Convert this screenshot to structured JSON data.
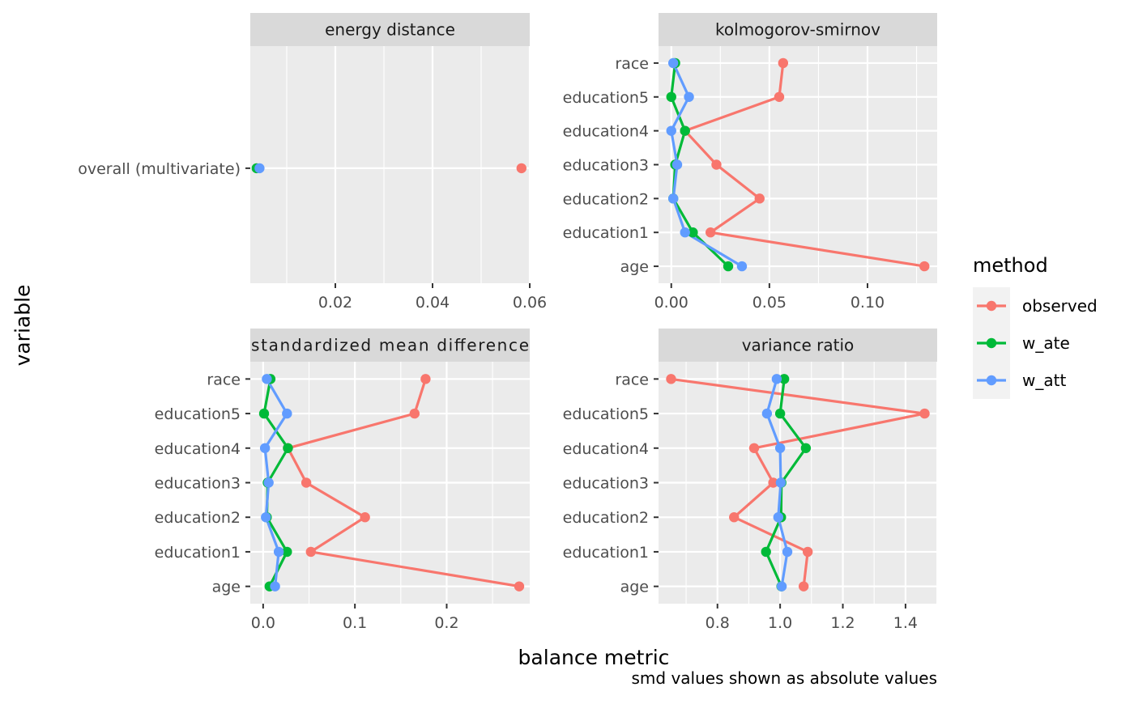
{
  "axis_labels": {
    "y": "variable",
    "x": "balance metric"
  },
  "caption": "smd values shown as absolute values",
  "legend": {
    "title": "method",
    "entries": [
      {
        "name": "observed",
        "color": "#F8766D"
      },
      {
        "name": "w_ate",
        "color": "#00BA38"
      },
      {
        "name": "w_att",
        "color": "#619CFF"
      }
    ]
  },
  "chart_data": [
    {
      "type": "line",
      "facet": "energy distance",
      "categories": [
        "overall (multivariate)"
      ],
      "xlim": [
        0.0025,
        0.06
      ],
      "xticks": [
        0.02,
        0.04,
        0.06
      ],
      "xtick_labels": [
        "0.02",
        "0.04",
        "0.06"
      ],
      "series": [
        {
          "name": "observed",
          "values": [
            0.0583
          ]
        },
        {
          "name": "w_ate",
          "values": [
            0.0038
          ]
        },
        {
          "name": "w_att",
          "values": [
            0.0044
          ]
        }
      ]
    },
    {
      "type": "line",
      "facet": "kolmogorov-smirnov",
      "categories": [
        "race",
        "education5",
        "education4",
        "education3",
        "education2",
        "education1",
        "age"
      ],
      "xlim": [
        -0.0065,
        0.1355
      ],
      "xticks": [
        0.0,
        0.05,
        0.1
      ],
      "xtick_labels": [
        "0.00",
        "0.05",
        "0.10"
      ],
      "series": [
        {
          "name": "observed",
          "values": [
            0.057,
            0.055,
            0.007,
            0.023,
            0.045,
            0.02,
            0.129
          ]
        },
        {
          "name": "w_ate",
          "values": [
            0.002,
            0.0,
            0.007,
            0.002,
            0.001,
            0.011,
            0.029
          ]
        },
        {
          "name": "w_att",
          "values": [
            0.001,
            0.009,
            0.0,
            0.003,
            0.001,
            0.007,
            0.036
          ]
        }
      ]
    },
    {
      "type": "line",
      "facet": "standardized mean difference",
      "categories": [
        "race",
        "education5",
        "education4",
        "education3",
        "education2",
        "education1",
        "age"
      ],
      "xlim": [
        -0.014,
        0.2905
      ],
      "xticks": [
        0.0,
        0.1,
        0.2
      ],
      "xtick_labels": [
        "0.0",
        "0.1",
        "0.2"
      ],
      "series": [
        {
          "name": "observed",
          "values": [
            0.177,
            0.165,
            0.027,
            0.047,
            0.111,
            0.052,
            0.279
          ]
        },
        {
          "name": "w_ate",
          "values": [
            0.008,
            0.001,
            0.027,
            0.005,
            0.004,
            0.026,
            0.007
          ]
        },
        {
          "name": "w_att",
          "values": [
            0.004,
            0.026,
            0.002,
            0.006,
            0.003,
            0.017,
            0.013
          ]
        }
      ]
    },
    {
      "type": "line",
      "facet": "variance ratio",
      "categories": [
        "race",
        "education5",
        "education4",
        "education3",
        "education2",
        "education1",
        "age"
      ],
      "xlim": [
        0.612,
        1.501
      ],
      "xticks": [
        0.8,
        1.0,
        1.2,
        1.4
      ],
      "xtick_labels": [
        "0.8",
        "1.0",
        "1.2",
        "1.4"
      ],
      "series": [
        {
          "name": "observed",
          "values": [
            0.652,
            1.461,
            0.917,
            0.978,
            0.853,
            1.088,
            1.075
          ]
        },
        {
          "name": "w_ate",
          "values": [
            1.013,
            1.0,
            1.082,
            1.004,
            1.003,
            0.955,
            1.004
          ]
        },
        {
          "name": "w_att",
          "values": [
            0.989,
            0.958,
            1.0,
            1.002,
            0.994,
            1.023,
            1.005
          ]
        }
      ]
    }
  ]
}
